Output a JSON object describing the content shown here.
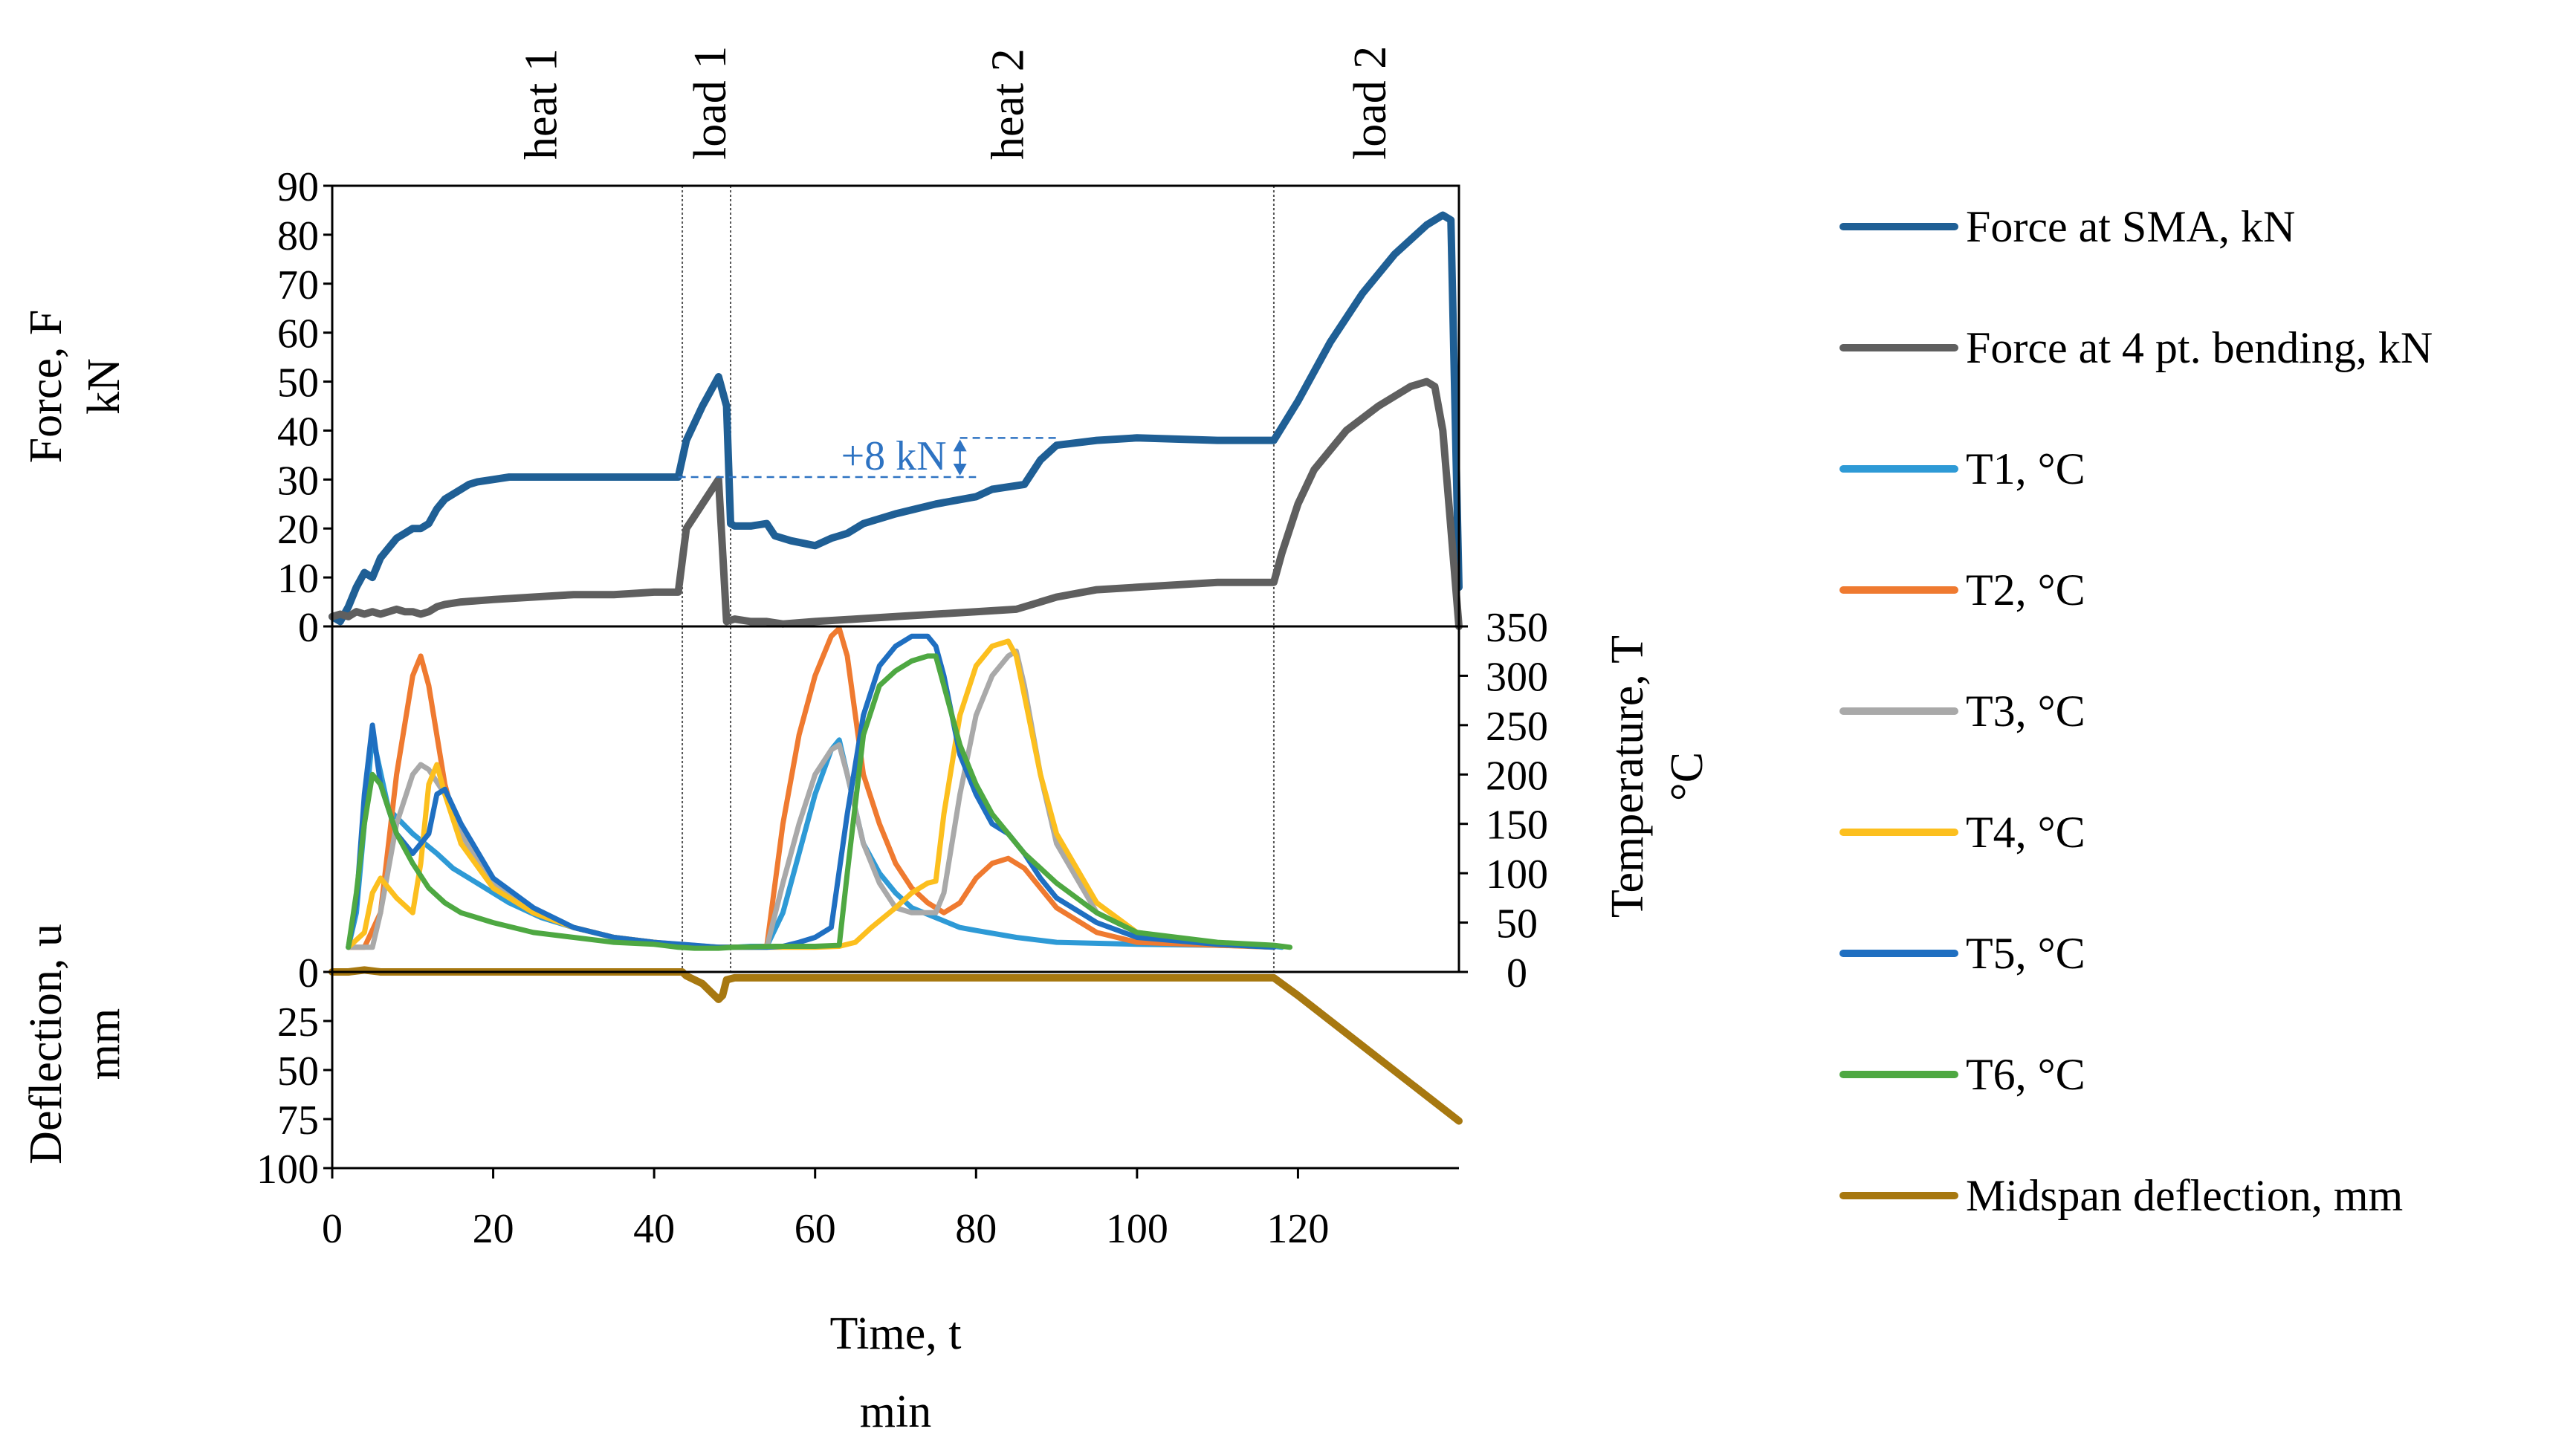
{
  "chart_data": {
    "type": "line",
    "x_axis": {
      "label_line1": "Time, t",
      "label_line2": "min",
      "range": [
        0,
        140
      ],
      "ticks": [
        0,
        20,
        40,
        60,
        80,
        100,
        120
      ]
    },
    "force_axis": {
      "label_line1": "Force, F",
      "label_line2": "kN",
      "range": [
        0,
        90
      ],
      "ticks": [
        0,
        10,
        20,
        30,
        40,
        50,
        60,
        70,
        80,
        90
      ]
    },
    "temperature_axis": {
      "label_line1": "Temperature, T",
      "label_line2": "°C",
      "range": [
        0,
        350
      ],
      "ticks": [
        0,
        50,
        100,
        150,
        200,
        250,
        300,
        350
      ]
    },
    "deflection_axis": {
      "label_line1": "Deflection, u",
      "label_line2": "mm",
      "range": [
        0,
        100
      ],
      "ticks": [
        0,
        25,
        50,
        75,
        100
      ]
    },
    "phases": [
      {
        "label": "heat 1",
        "x": 26
      },
      {
        "label": "load 1",
        "x": 47
      },
      {
        "label": "heat 2",
        "x": 84
      },
      {
        "label": "load 2",
        "x": 129
      }
    ],
    "phase_boundaries": [
      43.5,
      49.5,
      117
    ],
    "annotation": {
      "text": "+8 kN",
      "x_from": 43,
      "x_to": 90,
      "y_low": 30.5,
      "y_high": 38.5
    },
    "series": [
      {
        "name": "Force at SMA, kN",
        "color": "#1f5f95",
        "axis": "force",
        "x": [
          0,
          1,
          2,
          3,
          4,
          5,
          6,
          7,
          8,
          9,
          10,
          11,
          12,
          13,
          14,
          15,
          16,
          17,
          18,
          20,
          22,
          25,
          28,
          32,
          36,
          40,
          43,
          44,
          46,
          48,
          49,
          49.5,
          50,
          52,
          54,
          55,
          57,
          60,
          62,
          63,
          64,
          66,
          70,
          75,
          80,
          82,
          86,
          88,
          90,
          95,
          100,
          110,
          117,
          120,
          124,
          128,
          132,
          136,
          138,
          139,
          140
        ],
        "values": [
          2,
          1,
          4,
          8,
          11,
          10,
          14,
          16,
          18,
          19,
          20,
          20,
          21,
          24,
          26,
          27,
          28,
          29,
          29.5,
          30,
          30.5,
          30.5,
          30.5,
          30.5,
          30.5,
          30.5,
          30.5,
          38,
          45,
          51,
          45,
          21,
          20.5,
          20.5,
          21,
          18.5,
          17.5,
          16.5,
          18,
          18.5,
          19,
          21,
          23,
          25,
          26.5,
          28,
          29,
          34,
          37,
          38,
          38.5,
          38,
          38,
          46,
          58,
          68,
          76,
          82,
          84,
          83,
          8
        ]
      },
      {
        "name": "Force at 4 pt. bending, kN",
        "color": "#5f5f5f",
        "axis": "force",
        "x": [
          0,
          1,
          2,
          3,
          4,
          5,
          6,
          7,
          8,
          9,
          10,
          11,
          12,
          13,
          14,
          16,
          20,
          25,
          30,
          35,
          40,
          43,
          44,
          46,
          48,
          49,
          50,
          52,
          54,
          56,
          60,
          65,
          70,
          75,
          80,
          85,
          86,
          88,
          90,
          95,
          100,
          110,
          117,
          118,
          120,
          122,
          124,
          126,
          130,
          134,
          136,
          137,
          138,
          139,
          140
        ],
        "values": [
          2,
          2.5,
          2,
          3,
          2.5,
          3,
          2.5,
          3,
          3.5,
          3,
          3,
          2.5,
          3,
          4,
          4.5,
          5,
          5.5,
          6,
          6.5,
          6.5,
          7,
          7,
          20,
          25,
          30,
          1,
          1.5,
          1,
          1,
          0.5,
          1,
          1.5,
          2,
          2.5,
          3,
          3.5,
          4,
          5,
          6,
          7.5,
          8,
          9,
          9,
          15,
          25,
          32,
          36,
          40,
          45,
          49,
          50,
          49,
          40,
          20,
          0
        ]
      },
      {
        "name": "T1, °C",
        "color": "#2e9ad6",
        "axis": "temp",
        "x": [
          2,
          3,
          4,
          5,
          7,
          10,
          13,
          15,
          18,
          22,
          26,
          30,
          35,
          40,
          45,
          48,
          50,
          52,
          54,
          56,
          58,
          60,
          62,
          63,
          64,
          66,
          68,
          70,
          72,
          75,
          78,
          80,
          85,
          90,
          100,
          110,
          117,
          118
        ],
        "values": [
          25,
          60,
          150,
          240,
          165,
          140,
          120,
          105,
          90,
          70,
          55,
          45,
          35,
          30,
          25,
          25,
          25,
          26,
          26,
          60,
          120,
          180,
          225,
          235,
          200,
          130,
          100,
          80,
          65,
          55,
          45,
          42,
          35,
          30,
          28,
          27,
          26,
          25
        ]
      },
      {
        "name": "T2, °C",
        "color": "#ef7a30",
        "axis": "temp",
        "x": [
          2,
          4,
          6,
          8,
          10,
          11,
          12,
          14,
          16,
          20,
          25,
          30,
          35,
          40,
          43,
          48,
          52,
          54,
          56,
          58,
          60,
          62,
          63,
          64,
          65,
          66,
          68,
          70,
          72,
          74,
          76,
          78,
          80,
          82,
          84,
          86,
          88,
          90,
          95,
          100,
          110,
          117
        ],
        "values": [
          25,
          25,
          60,
          200,
          300,
          320,
          290,
          190,
          130,
          90,
          60,
          45,
          35,
          30,
          28,
          25,
          25,
          26,
          150,
          240,
          300,
          340,
          348,
          320,
          260,
          200,
          150,
          110,
          85,
          70,
          60,
          70,
          95,
          110,
          115,
          105,
          85,
          65,
          40,
          30,
          27,
          25
        ]
      },
      {
        "name": "T3, °C",
        "color": "#a9a9a9",
        "axis": "temp",
        "x": [
          2,
          4,
          5,
          6,
          8,
          10,
          11,
          12,
          14,
          16,
          20,
          25,
          30,
          35,
          40,
          45,
          48,
          52,
          54,
          56,
          58,
          60,
          62,
          63,
          64,
          66,
          68,
          70,
          72,
          75,
          76,
          78,
          80,
          82,
          84,
          85,
          86,
          88,
          90,
          95,
          100,
          110,
          117
        ],
        "values": [
          25,
          25,
          25,
          60,
          150,
          200,
          210,
          205,
          180,
          140,
          90,
          60,
          45,
          35,
          30,
          26,
          25,
          25,
          25,
          90,
          150,
          200,
          225,
          230,
          200,
          130,
          90,
          65,
          60,
          60,
          80,
          180,
          260,
          300,
          320,
          325,
          290,
          200,
          130,
          60,
          40,
          28,
          25
        ]
      },
      {
        "name": "T4, °C",
        "color": "#fcbf1e",
        "axis": "temp",
        "x": [
          2,
          4,
          5,
          6,
          8,
          10,
          11,
          12,
          13,
          14,
          16,
          20,
          25,
          30,
          35,
          40,
          45,
          48,
          55,
          60,
          63,
          65,
          67,
          70,
          72,
          74,
          75,
          76,
          78,
          80,
          82,
          84,
          85,
          86,
          88,
          90,
          95,
          100,
          110,
          117
        ],
        "values": [
          25,
          40,
          80,
          95,
          75,
          60,
          110,
          190,
          210,
          180,
          130,
          85,
          60,
          45,
          35,
          30,
          26,
          25,
          25,
          25,
          26,
          30,
          45,
          65,
          80,
          90,
          92,
          160,
          260,
          310,
          330,
          335,
          320,
          280,
          200,
          140,
          70,
          40,
          28,
          25
        ]
      },
      {
        "name": "T5, °C",
        "color": "#1f6fc1",
        "axis": "temp",
        "x": [
          2,
          3,
          4,
          5,
          6,
          8,
          10,
          12,
          13,
          14,
          16,
          20,
          25,
          30,
          35,
          40,
          45,
          48,
          52,
          54,
          56,
          58,
          60,
          62,
          64,
          66,
          68,
          70,
          72,
          74,
          75,
          76,
          78,
          80,
          82,
          84,
          86,
          88,
          90,
          95,
          100,
          110,
          117
        ],
        "values": [
          25,
          70,
          180,
          250,
          190,
          140,
          120,
          140,
          180,
          185,
          150,
          95,
          65,
          45,
          35,
          30,
          27,
          25,
          25,
          25,
          26,
          30,
          35,
          45,
          160,
          260,
          310,
          330,
          340,
          340,
          330,
          300,
          220,
          180,
          150,
          140,
          120,
          95,
          75,
          50,
          35,
          28,
          25
        ]
      },
      {
        "name": "T6, °C",
        "color": "#4ea842",
        "axis": "temp",
        "x": [
          2,
          3,
          4,
          5,
          6,
          8,
          10,
          12,
          14,
          16,
          20,
          25,
          30,
          35,
          40,
          43,
          45,
          48,
          50,
          55,
          60,
          63,
          64,
          66,
          68,
          70,
          72,
          74,
          75,
          76,
          78,
          80,
          82,
          84,
          86,
          90,
          95,
          100,
          110,
          117,
          119
        ],
        "values": [
          25,
          80,
          150,
          200,
          190,
          140,
          110,
          85,
          70,
          60,
          50,
          40,
          35,
          30,
          28,
          25,
          24,
          24,
          25,
          26,
          26,
          27,
          100,
          240,
          290,
          305,
          315,
          320,
          320,
          290,
          230,
          190,
          160,
          140,
          120,
          90,
          60,
          40,
          30,
          27,
          25
        ]
      },
      {
        "name": "Midspan deflection, mm",
        "color": "#a77810",
        "axis": "defl",
        "x": [
          0,
          2,
          4,
          6,
          10,
          20,
          30,
          40,
          43.5,
          44,
          46,
          47,
          48,
          48.5,
          49,
          50,
          60,
          80,
          100,
          110,
          117,
          120,
          130,
          140
        ],
        "values": [
          0,
          0,
          -1,
          0,
          0,
          0,
          0,
          0,
          0,
          2,
          6,
          10,
          14,
          12,
          4,
          3,
          3,
          3,
          3,
          3,
          3,
          12,
          44,
          76
        ]
      }
    ]
  }
}
